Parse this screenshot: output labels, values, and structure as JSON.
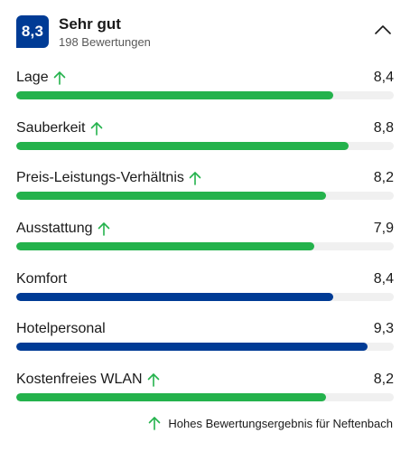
{
  "header": {
    "score": "8,3",
    "title": "Sehr gut",
    "reviews": "198 Bewertungen"
  },
  "colors": {
    "high": "#24b24c",
    "normal": "#003b95",
    "track": "#f0f0f0",
    "badge": "#003b95"
  },
  "categories": [
    {
      "label": "Lage",
      "score": "8,4",
      "value": 8.4,
      "highlight": true
    },
    {
      "label": "Sauberkeit",
      "score": "8,8",
      "value": 8.8,
      "highlight": true
    },
    {
      "label": "Preis-Leistungs-Verhältnis",
      "score": "8,2",
      "value": 8.2,
      "highlight": true
    },
    {
      "label": "Ausstattung",
      "score": "7,9",
      "value": 7.9,
      "highlight": true
    },
    {
      "label": "Komfort",
      "score": "8,4",
      "value": 8.4,
      "highlight": false
    },
    {
      "label": "Hotelpersonal",
      "score": "9,3",
      "value": 9.3,
      "highlight": false
    },
    {
      "label": "Kostenfreies WLAN",
      "score": "8,2",
      "value": 8.2,
      "highlight": true
    }
  ],
  "max_score": 10,
  "footer": {
    "text": "Hohes Bewertungsergebnis für Neftenbach",
    "icon": "arrow-up-icon"
  },
  "icons": {
    "collapse": "chevron-up-icon"
  }
}
